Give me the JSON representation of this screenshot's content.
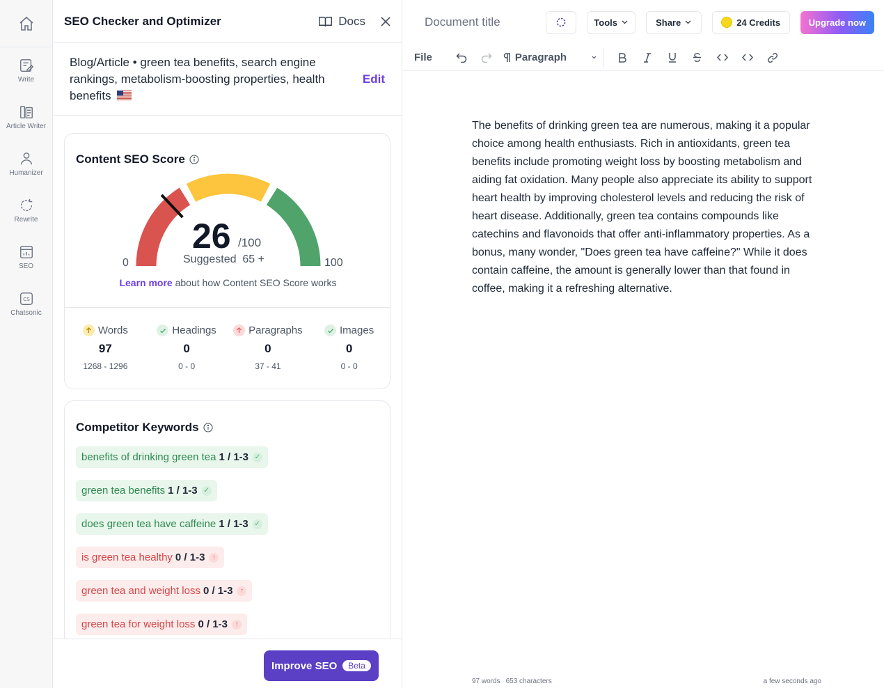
{
  "rail": {
    "items": [
      {
        "label": "Write",
        "icon": "write-icon"
      },
      {
        "label": "Article Writer",
        "icon": "article-writer-icon"
      },
      {
        "label": "Humanizer",
        "icon": "humanizer-icon"
      },
      {
        "label": "Rewrite",
        "icon": "rewrite-icon"
      },
      {
        "label": "SEO",
        "icon": "seo-icon"
      },
      {
        "label": "Chatsonic",
        "icon": "chatsonic-icon"
      }
    ]
  },
  "panel": {
    "title": "SEO Checker and Optimizer",
    "docs_label": "Docs",
    "topic": "Blog/Article • green tea benefits, search engine rankings, metabolism-boosting properties, health benefits",
    "edit_label": "Edit",
    "score": {
      "title": "Content SEO Score",
      "value": "26",
      "value_number": 26,
      "max": "/100",
      "suggested": "Suggested  65 +",
      "min_label": "0",
      "max_label": "100",
      "learn_more": "Learn more",
      "learn_rest": " about how Content SEO Score works",
      "colors": {
        "red": "#d9534f",
        "yellow": "#fdc53d",
        "green": "#4fa36b"
      }
    },
    "stats": [
      {
        "label": "Words",
        "value": "97",
        "range": "1268 - 1296",
        "status": "up-warning"
      },
      {
        "label": "Headings",
        "value": "0",
        "range": "0 - 0",
        "status": "ok"
      },
      {
        "label": "Paragraphs",
        "value": "0",
        "range": "37 - 41",
        "status": "up-bad"
      },
      {
        "label": "Images",
        "value": "0",
        "range": "0 - 0",
        "status": "ok"
      }
    ],
    "keywords_title": "Competitor Keywords",
    "keywords": [
      {
        "text": "benefits of drinking green tea",
        "count": "1 / 1-3",
        "status": "ok"
      },
      {
        "text": "green tea benefits",
        "count": "1 / 1-3",
        "status": "ok"
      },
      {
        "text": "does green tea have caffeine",
        "count": "1 / 1-3",
        "status": "ok"
      },
      {
        "text": "is green tea healthy",
        "count": "0 / 1-3",
        "status": "bad"
      },
      {
        "text": "green tea and weight loss",
        "count": "0 / 1-3",
        "status": "bad"
      },
      {
        "text": "green tea for weight loss",
        "count": "0 / 1-3",
        "status": "bad"
      }
    ],
    "improve_label": "Improve SEO",
    "beta_label": "Beta"
  },
  "editor": {
    "doc_title": "Document title",
    "tools_label": "Tools",
    "share_label": "Share",
    "credits_label": "24 Credits",
    "upgrade_label": "Upgrade now",
    "file_label": "File",
    "paragraph_label": "Paragraph",
    "content": "The benefits of drinking green tea are numerous, making it a popular choice among health enthusiasts. Rich in antioxidants, green tea benefits include promoting weight loss by boosting metabolism and aiding fat oxidation. Many people also appreciate its ability to support heart health by improving cholesterol levels and reducing the risk of heart disease. Additionally, green tea contains compounds like catechins and flavonoids that offer anti-inflammatory properties. As a bonus, many wonder, \"Does green tea have caffeine?\" While it does contain caffeine, the amount is generally lower than that found in coffee, making it a refreshing alternative.",
    "word_count": "97 words",
    "char_count": "653 characters",
    "saved": "a few seconds ago"
  }
}
